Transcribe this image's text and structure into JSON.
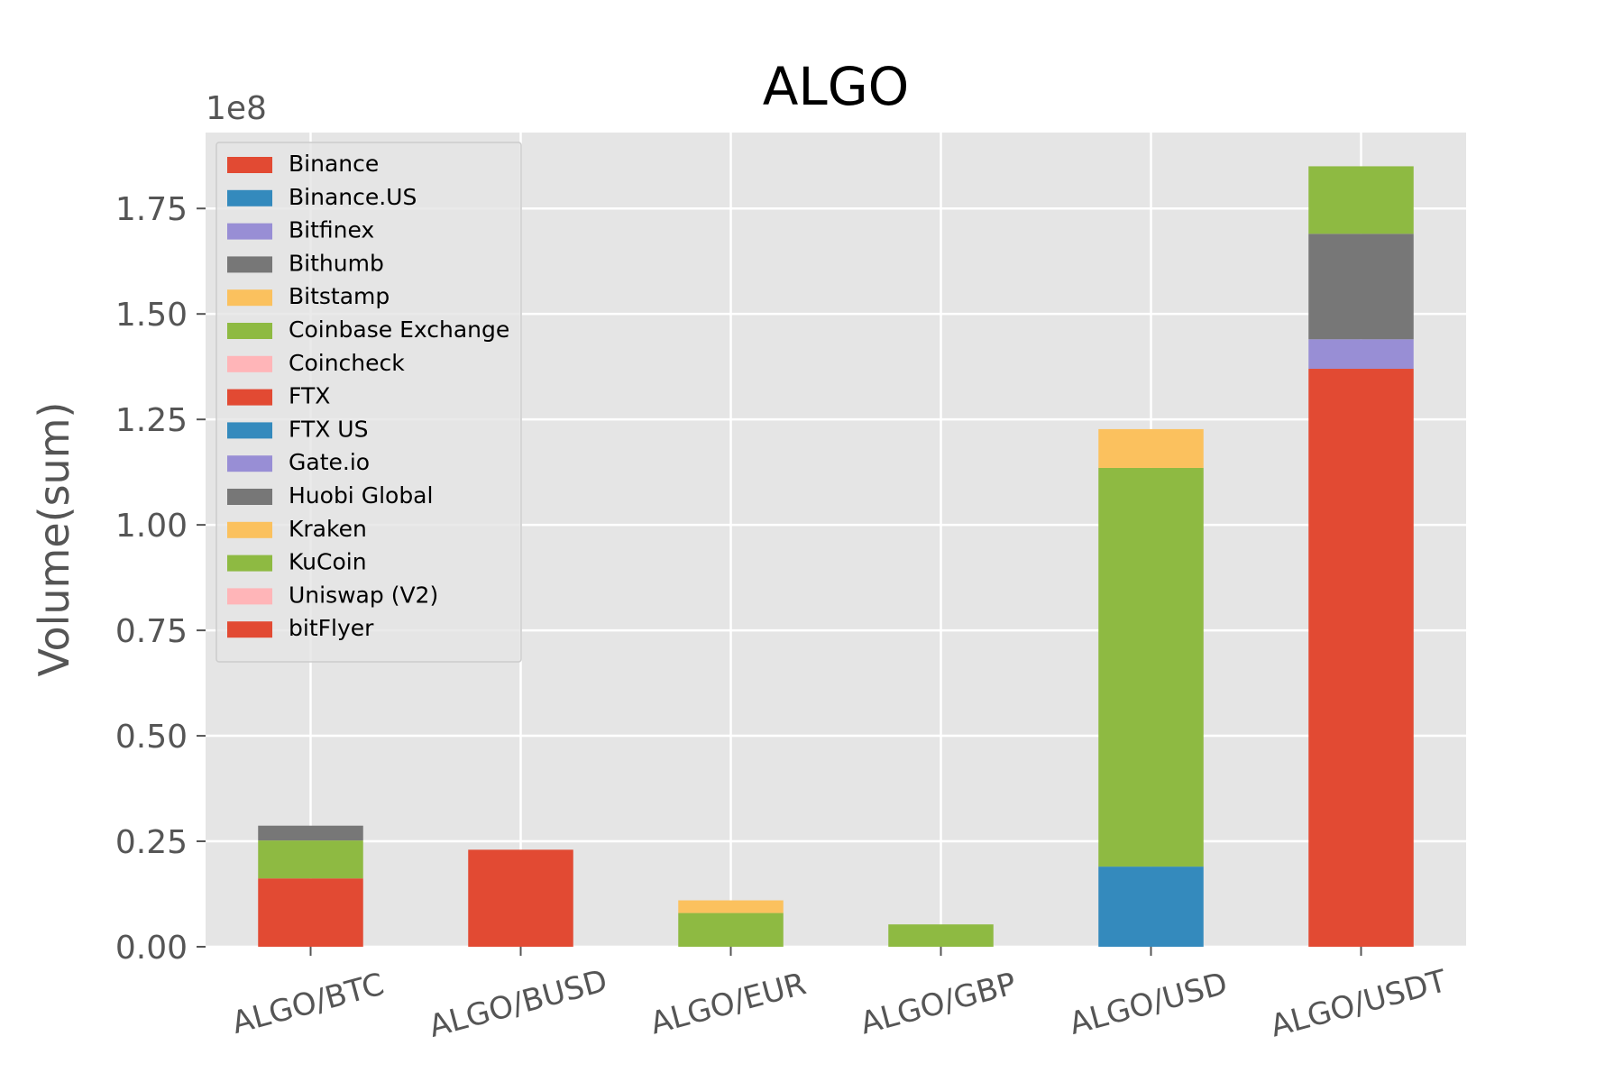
{
  "chart_data": {
    "type": "bar",
    "stacked": true,
    "title": "ALGO",
    "xlabel": "",
    "ylabel": "Volume(sum)",
    "y_offset_label": "1e8",
    "ylim": [
      0,
      1.93
    ],
    "yticks": [
      "0.00",
      "0.25",
      "0.50",
      "0.75",
      "1.00",
      "1.25",
      "1.50",
      "1.75"
    ],
    "grid": true,
    "legend_position": "upper-left",
    "categories": [
      "ALGO/BTC",
      "ALGO/BUSD",
      "ALGO/EUR",
      "ALGO/GBP",
      "ALGO/USD",
      "ALGO/USDT"
    ],
    "series": [
      {
        "name": "Binance",
        "color": "#E24A33",
        "values": [
          0.162,
          0.23,
          0,
          0,
          0,
          1.37
        ]
      },
      {
        "name": "Binance.US",
        "color": "#348ABD",
        "values": [
          0,
          0,
          0,
          0,
          0.19,
          0
        ]
      },
      {
        "name": "Bitfinex",
        "color": "#988ED5",
        "values": [
          0,
          0,
          0,
          0,
          0,
          0.0
        ]
      },
      {
        "name": "Bithumb",
        "color": "#777777",
        "values": [
          0,
          0,
          0,
          0,
          0,
          0
        ]
      },
      {
        "name": "Bitstamp",
        "color": "#FBC15E",
        "values": [
          0,
          0,
          0,
          0,
          0,
          0
        ]
      },
      {
        "name": "Coinbase Exchange",
        "color": "#8EBA42",
        "values": [
          0,
          0,
          0.08,
          0,
          0.945,
          0
        ]
      },
      {
        "name": "Coincheck",
        "color": "#FFB5B8",
        "values": [
          0,
          0,
          0,
          0,
          0,
          0
        ]
      },
      {
        "name": "FTX",
        "color": "#E24A33",
        "values": [
          0,
          0,
          0,
          0,
          0,
          0
        ]
      },
      {
        "name": "FTX US",
        "color": "#348ABD",
        "values": [
          0,
          0,
          0,
          0,
          0,
          0
        ]
      },
      {
        "name": "Gate.io",
        "color": "#988ED5",
        "values": [
          0,
          0,
          0,
          0,
          0,
          0.07
        ]
      },
      {
        "name": "Huobi Global",
        "color": "#777777",
        "values": [
          0,
          0,
          0,
          0,
          0,
          0.25
        ]
      },
      {
        "name": "Kraken",
        "color": "#FBC15E",
        "values": [
          0,
          0,
          0.03,
          0,
          0.092,
          0
        ]
      },
      {
        "name": "KuCoin",
        "color": "#8EBA42",
        "values": [
          0.09,
          0,
          0,
          0.053,
          0,
          0.16
        ]
      },
      {
        "name": "Uniswap (V2)",
        "color": "#FFB5B8",
        "values": [
          0,
          0,
          0,
          0,
          0,
          0
        ]
      },
      {
        "name": "bitFlyer",
        "color": "#E24A33",
        "values": [
          0,
          0,
          0,
          0,
          0,
          0
        ]
      }
    ],
    "upper_segments": [
      {
        "category": "ALGO/BTC",
        "name": "Bithumb",
        "color": "#777777",
        "value": 0.035
      }
    ]
  }
}
